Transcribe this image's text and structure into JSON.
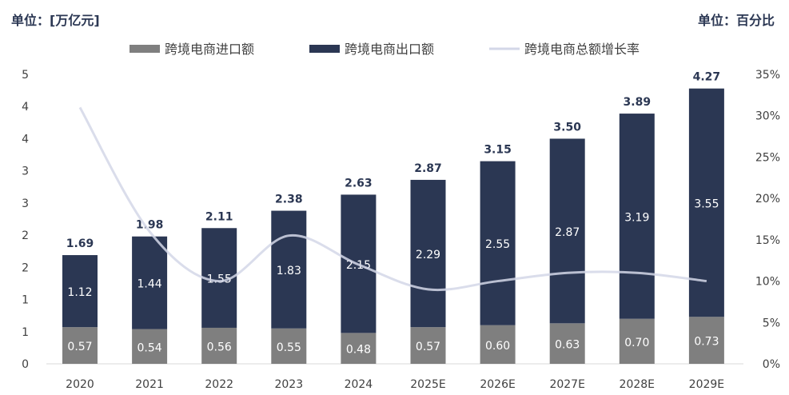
{
  "left_unit": "单位：[万亿元]",
  "right_unit": "单位：百分比",
  "colors": {
    "import": "#7f7f7f",
    "export": "#2b3753",
    "growth": "#d3d7e8",
    "axis_text": "#404040"
  },
  "chart_data": {
    "type": "bar",
    "stacked": true,
    "categories": [
      "2020",
      "2021",
      "2022",
      "2023",
      "2024",
      "2025E",
      "2026E",
      "2027E",
      "2028E",
      "2029E"
    ],
    "series": [
      {
        "name": "跨境电商进口额",
        "type": "bar",
        "axis": "left",
        "values": [
          0.57,
          0.54,
          0.56,
          0.55,
          0.48,
          0.57,
          0.6,
          0.63,
          0.7,
          0.73
        ]
      },
      {
        "name": "跨境电商出口额",
        "type": "bar",
        "axis": "left",
        "values": [
          1.12,
          1.44,
          1.55,
          1.83,
          2.15,
          2.29,
          2.55,
          2.87,
          3.19,
          3.55
        ]
      },
      {
        "name": "跨境电商总额增长率",
        "type": "line",
        "axis": "right",
        "values": [
          31,
          16,
          10,
          15.5,
          12,
          9,
          10,
          11,
          11,
          10
        ]
      }
    ],
    "totals": [
      "1.69",
      "1.98",
      "2.11",
      "2.38",
      "2.63",
      "2.87",
      "3.15",
      "3.50",
      "3.89",
      "4.27"
    ],
    "import_labels": [
      "0.57",
      "0.54",
      "0.56",
      "0.55",
      "0.48",
      "0.57",
      "0.60",
      "0.63",
      "0.70",
      "0.73"
    ],
    "export_labels": [
      "1.12",
      "1.44",
      "1.55",
      "1.83",
      "2.15",
      "2.29",
      "2.55",
      "2.87",
      "3.19",
      "3.55"
    ],
    "ylim_left": [
      0,
      4.5
    ],
    "yticks_left": [
      "0",
      "1",
      "1",
      "2",
      "2",
      "3",
      "3",
      "4",
      "4",
      "5"
    ],
    "ylim_right": [
      0,
      35
    ],
    "yticks_right": [
      "0%",
      "5%",
      "10%",
      "15%",
      "20%",
      "25%",
      "30%",
      "35%"
    ],
    "grid": false,
    "legend_position": "top"
  }
}
